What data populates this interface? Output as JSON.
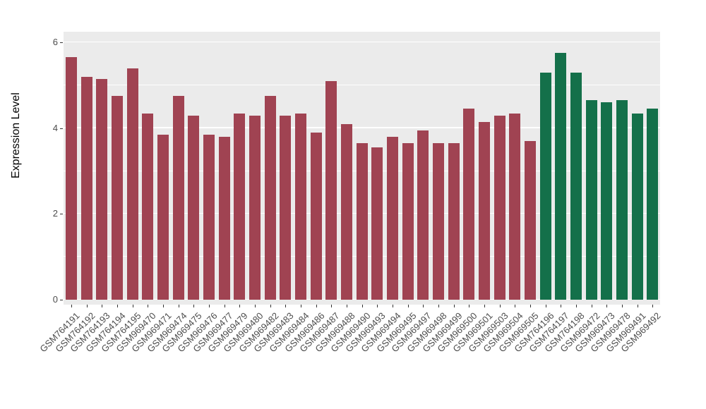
{
  "chart_data": {
    "type": "bar",
    "title": "",
    "xlabel": "",
    "ylabel": "Expression Level",
    "ylim": [
      0,
      6.3
    ],
    "yticks": [
      0,
      2,
      4,
      6
    ],
    "yticks_minor": [
      1,
      3,
      5
    ],
    "grid": "on",
    "legend_position": "none",
    "panel_background": "#EBEBEB",
    "gridline_color": "#FFFFFF",
    "tick_color": "#333333",
    "tick_label_color": "#4D4D4D",
    "categories": [
      "GSM764191",
      "GSM764192",
      "GSM764193",
      "GSM764194",
      "GSM764195",
      "GSM969470",
      "GSM969471",
      "GSM969474",
      "GSM969475",
      "GSM969476",
      "GSM969477",
      "GSM969479",
      "GSM969480",
      "GSM969482",
      "GSM969483",
      "GSM969484",
      "GSM969486",
      "GSM969487",
      "GSM969488",
      "GSM969490",
      "GSM969493",
      "GSM969494",
      "GSM969495",
      "GSM969497",
      "GSM969498",
      "GSM969499",
      "GSM969500",
      "GSM969501",
      "GSM969503",
      "GSM969504",
      "GSM969505",
      "GSM764196",
      "GSM764197",
      "GSM764198",
      "GSM969472",
      "GSM969473",
      "GSM969478",
      "GSM969491",
      "GSM969492"
    ],
    "values": [
      5.65,
      5.2,
      5.15,
      4.75,
      5.4,
      4.35,
      3.85,
      4.75,
      4.3,
      3.85,
      3.8,
      4.35,
      4.3,
      4.75,
      4.3,
      4.35,
      3.9,
      5.1,
      4.1,
      3.65,
      3.55,
      3.8,
      3.65,
      3.95,
      3.65,
      3.65,
      4.45,
      4.15,
      4.3,
      4.35,
      3.7,
      5.3,
      5.75,
      5.3,
      4.65,
      4.6,
      4.65,
      4.35,
      4.45
    ],
    "groups": [
      "group1",
      "group1",
      "group1",
      "group1",
      "group1",
      "group1",
      "group1",
      "group1",
      "group1",
      "group1",
      "group1",
      "group1",
      "group1",
      "group1",
      "group1",
      "group1",
      "group1",
      "group1",
      "group1",
      "group1",
      "group1",
      "group1",
      "group1",
      "group1",
      "group1",
      "group1",
      "group1",
      "group1",
      "group1",
      "group1",
      "group1",
      "group2",
      "group2",
      "group2",
      "group2",
      "group2",
      "group2",
      "group2",
      "group2"
    ],
    "group_colors": {
      "group1": "#A04352",
      "group2": "#14704A"
    }
  }
}
